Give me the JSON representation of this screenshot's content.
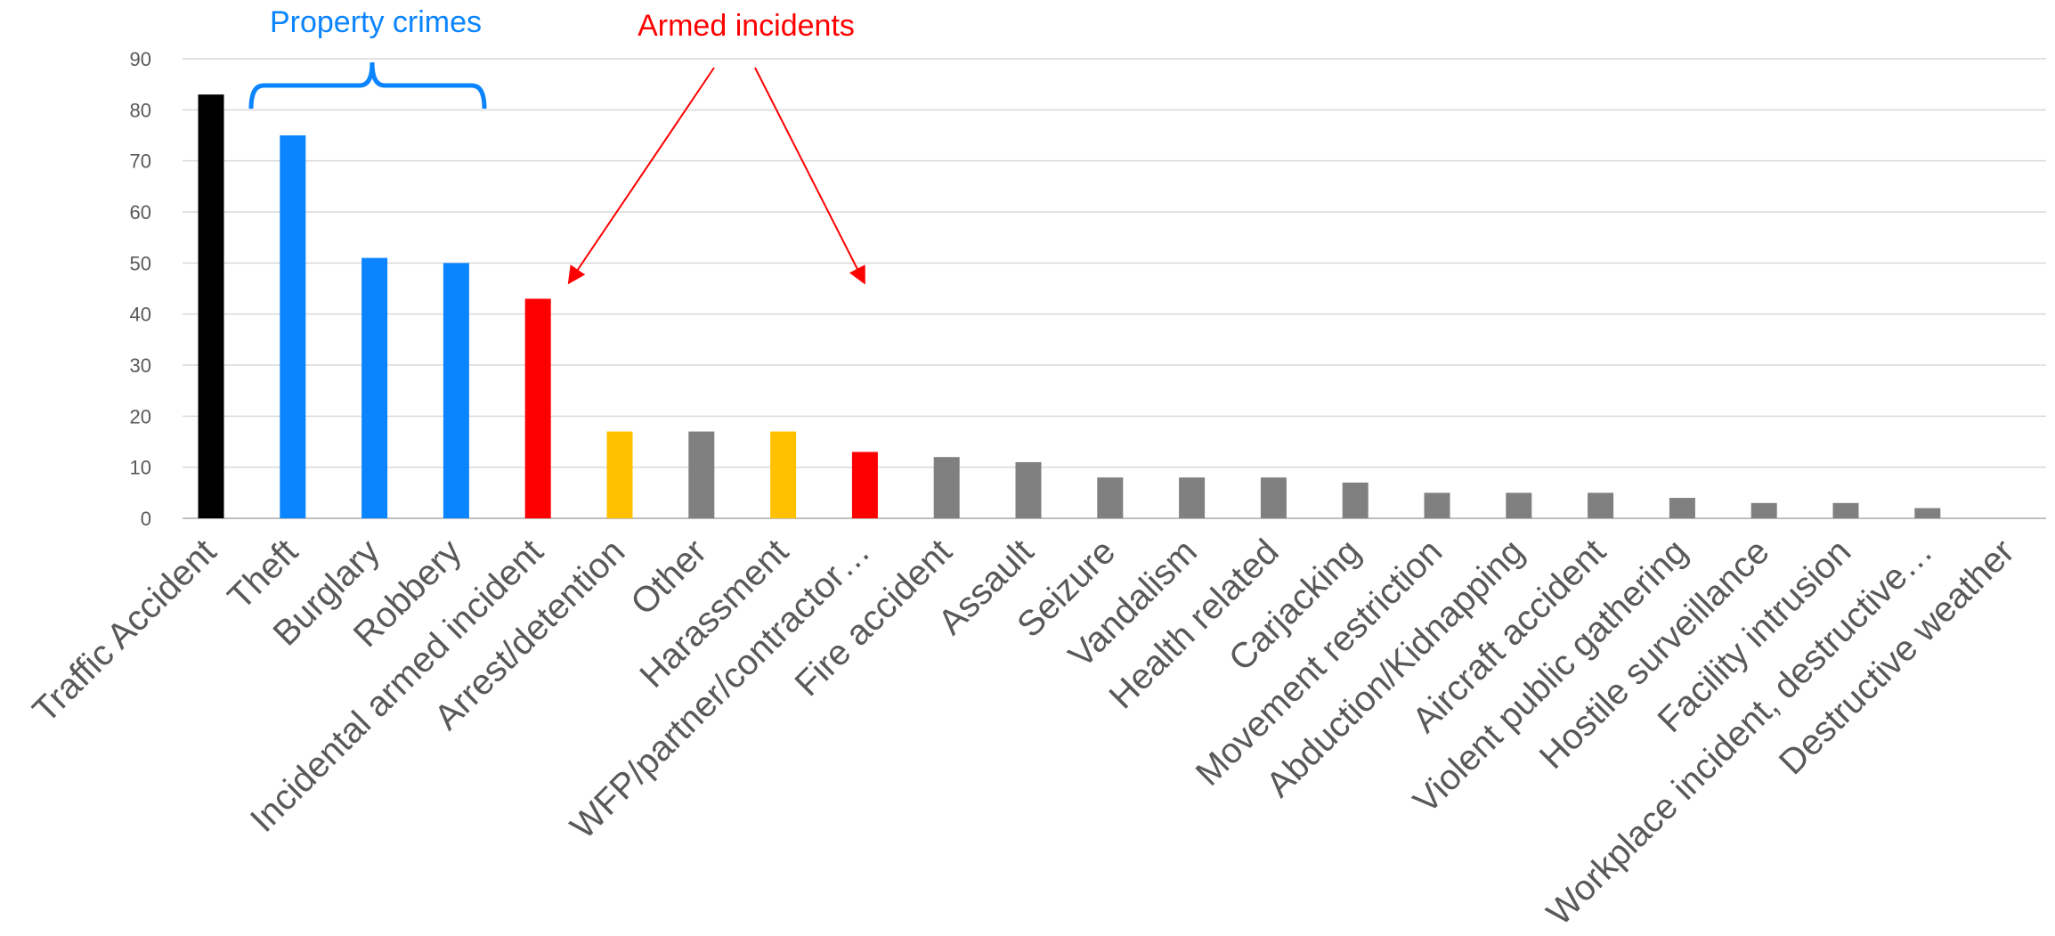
{
  "chart_data": {
    "type": "bar",
    "categories": [
      "Traffic Accident",
      "Theft",
      "Burglary",
      "Robbery",
      "Incidental armed incident",
      "Arrest/detention",
      "Other",
      "Harassment",
      "WFP/partner/contractor…",
      "Fire accident",
      "Assault",
      "Seizure",
      "Vandalism",
      "Health related",
      "Carjacking",
      "Movement restriction",
      "Abduction/Kidnapping",
      "Aircraft accident",
      "Violent public gathering",
      "Hostile surveillance",
      "Facility intrusion",
      "Workplace incident, destructive…",
      "Destructive weather"
    ],
    "values": [
      83,
      75,
      51,
      50,
      43,
      17,
      17,
      17,
      13,
      12,
      11,
      8,
      8,
      8,
      7,
      5,
      5,
      5,
      4,
      3,
      3,
      2,
      0
    ],
    "bar_colors": [
      "#000000",
      "#0a84ff",
      "#0a84ff",
      "#0a84ff",
      "#ff0000",
      "#ffc000",
      "#808080",
      "#ffc000",
      "#ff0000",
      "#808080",
      "#808080",
      "#808080",
      "#808080",
      "#808080",
      "#808080",
      "#808080",
      "#808080",
      "#808080",
      "#808080",
      "#808080",
      "#808080",
      "#808080",
      "#808080"
    ],
    "y_ticks": [
      "0",
      "10",
      "20",
      "30",
      "40",
      "50",
      "60",
      "70",
      "80",
      "90"
    ],
    "ylim": [
      0,
      90
    ],
    "grid": true,
    "legend": "none",
    "annotations": {
      "property_crimes": {
        "text": "Property crimes",
        "color": "#0a84ff",
        "spans_categories": [
          "Theft",
          "Burglary",
          "Robbery"
        ]
      },
      "armed_incidents": {
        "text": "Armed incidents",
        "color": "#ff0000",
        "points_to_categories": [
          "Incidental armed incident",
          "WFP/partner/contractor…"
        ]
      }
    },
    "colors": {
      "gridline": "#d9d9d9",
      "axis": "#bfbfbf",
      "tick_text": "#595959"
    }
  }
}
